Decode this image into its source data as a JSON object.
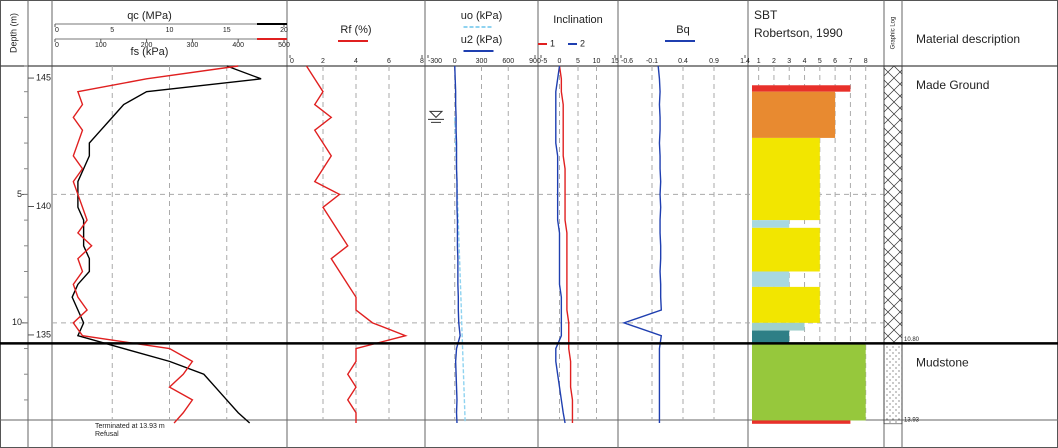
{
  "header": {
    "depth_label": "Depth (m)",
    "graphic_log": "Graphic Log",
    "material_description": "Material description"
  },
  "footer": {
    "termination": "Terminated at 13.93 m",
    "reason": "Refusal"
  },
  "chart_data": {
    "type": "cpt-log",
    "depth": [
      0,
      0.5,
      1,
      1.5,
      2,
      2.5,
      3,
      3.5,
      4,
      4.5,
      5,
      5.5,
      6,
      6.5,
      7,
      7.5,
      8,
      8.5,
      9,
      9.5,
      10,
      10.5,
      11,
      11.5,
      12,
      12.5,
      13,
      13.5,
      13.9
    ],
    "ylim": [
      0,
      14
    ],
    "yticks": [
      5,
      10
    ],
    "elevation_lim": [
      145.47,
      131.47
    ],
    "elevation_ticks": [
      145,
      140,
      135
    ],
    "grid": true,
    "panels": [
      {
        "axes": [
          {
            "xlim": [
              0,
              20
            ],
            "xticks": [
              0,
              5,
              10,
              15,
              20
            ],
            "series": [
              {
                "name": "qc (MPa)",
                "color": "#000000",
                "values": [
                  15,
                  18,
                  8,
                  6,
                  5,
                  4,
                  3,
                  3,
                  2.5,
                  2,
                  2,
                  2,
                  2.5,
                  2.5,
                  2.5,
                  3,
                  3,
                  2,
                  1.5,
                  2,
                  2.5,
                  2,
                  6,
                  10,
                  13,
                  14,
                  15,
                  16,
                  17
                ]
              }
            ]
          },
          {
            "xlim": [
              0,
              500
            ],
            "xticks": [
              0,
              100,
              200,
              300,
              400,
              500
            ],
            "series": [
              {
                "name": "fs (kPa)",
                "color": "#e02020",
                "values": [
                  400,
                  200,
                  50,
                  60,
                  40,
                  60,
                  50,
                  40,
                  60,
                  40,
                  50,
                  60,
                  70,
                  50,
                  80,
                  50,
                  60,
                  40,
                  50,
                  70,
                  40,
                  60,
                  250,
                  300,
                  280,
                  250,
                  300,
                  280,
                  260
                ]
              }
            ]
          }
        ]
      },
      {
        "axes": [
          {
            "xlim": [
              0,
              8
            ],
            "xticks": [
              0,
              2,
              4,
              6,
              8
            ],
            "series": [
              {
                "name": "Rf (%)",
                "color": "#e02020",
                "values": [
                  1,
                  1.5,
                  2,
                  1.5,
                  2.5,
                  1.5,
                  2,
                  2.5,
                  2,
                  1.5,
                  3,
                  2,
                  2.5,
                  3,
                  3.5,
                  2.5,
                  3,
                  3.5,
                  4,
                  4,
                  5,
                  7,
                  4,
                  4,
                  3.5,
                  4,
                  3.5,
                  4,
                  4
                ]
              }
            ]
          }
        ]
      },
      {
        "axes": [
          {
            "xlim": [
              -300,
              900
            ],
            "xticks": [
              -300,
              0,
              300,
              600,
              900
            ],
            "series": [
              {
                "name": "uo (kPa)",
                "color": "#8fd3f0",
                "dashed": true,
                "values": [
                  null,
                  null,
                  null,
                  null,
                  0,
                  5,
                  10,
                  15,
                  20,
                  25,
                  29,
                  34,
                  39,
                  44,
                  49,
                  54,
                  59,
                  64,
                  69,
                  74,
                  78,
                  83,
                  88,
                  93,
                  98,
                  103,
                  108,
                  113,
                  117
                ]
              },
              {
                "name": "u2 (kPa)",
                "color": "#1f3fb0",
                "values": [
                  0,
                  5,
                  10,
                  10,
                  15,
                  15,
                  20,
                  20,
                  20,
                  25,
                  25,
                  25,
                  30,
                  30,
                  30,
                  35,
                  35,
                  35,
                  40,
                  40,
                  45,
                  60,
                  20,
                  10,
                  15,
                  20,
                  25,
                  20,
                  25
                ]
              }
            ]
          }
        ]
      },
      {
        "title": "Inclination",
        "axes": [
          {
            "xlim": [
              -5,
              15
            ],
            "xticks": [
              -5,
              0,
              5,
              10,
              15
            ],
            "series": [
              {
                "name": "1",
                "color": "#e02020",
                "values": [
                  0,
                  0.5,
                  0.5,
                  1,
                  1,
                  1,
                  1,
                  1,
                  1.5,
                  1.5,
                  1.5,
                  1.5,
                  1.5,
                  2,
                  2,
                  2,
                  2,
                  2,
                  2,
                  2,
                  2.5,
                  2.5,
                  2.5,
                  3,
                  3,
                  3,
                  3.5,
                  3.5,
                  3.5
                ]
              },
              {
                "name": "2",
                "color": "#1f3fb0",
                "values": [
                  0,
                  -0.5,
                  -1,
                  -1,
                  -1,
                  -1,
                  -1,
                  -0.5,
                  -0.5,
                  -0.5,
                  -0.5,
                  -0.5,
                  -0.5,
                  0,
                  0,
                  0,
                  0,
                  0,
                  0.5,
                  0.5,
                  0.5,
                  0.5,
                  -1,
                  -1,
                  -0.5,
                  0,
                  0.5,
                  1,
                  1.5
                ]
              }
            ]
          }
        ]
      },
      {
        "axes": [
          {
            "xlim": [
              -0.6,
              1.4
            ],
            "xticks": [
              -0.6,
              -0.1,
              0.4,
              0.9,
              1.4
            ],
            "series": [
              {
                "name": "Bq",
                "color": "#1f3fb0",
                "values": [
                  0,
                  0.02,
                  0.03,
                  0.02,
                  0.03,
                  0.03,
                  0.02,
                  0.03,
                  0.03,
                  0.04,
                  0.03,
                  0.04,
                  0.03,
                  0.03,
                  0.04,
                  0.04,
                  0.03,
                  0.04,
                  0.04,
                  0.05,
                  -0.55,
                  0.05,
                  0.02,
                  0.02,
                  0.02,
                  0.02,
                  0.02,
                  0.02,
                  0.02
                ]
              }
            ]
          }
        ]
      }
    ],
    "sbt": {
      "title": "SBT",
      "subtitle": "Robertson, 1990",
      "xlim": [
        0.5,
        9
      ],
      "xticks": [
        1,
        2,
        3,
        4,
        5,
        6,
        7,
        8
      ],
      "layers": [
        {
          "top": 0.75,
          "bottom": 1.0,
          "zone": 7,
          "color": "#e8302a"
        },
        {
          "top": 1.0,
          "bottom": 2.8,
          "zone": 6,
          "color": "#e88a30"
        },
        {
          "top": 2.8,
          "bottom": 6.0,
          "zone": 5,
          "color": "#f2e600"
        },
        {
          "top": 6.0,
          "bottom": 6.3,
          "zone": 3,
          "color": "#a8d8e0"
        },
        {
          "top": 6.3,
          "bottom": 8.0,
          "zone": 5,
          "color": "#f2e600"
        },
        {
          "top": 8.0,
          "bottom": 8.6,
          "zone": 3,
          "color": "#a8d8e0"
        },
        {
          "top": 8.6,
          "bottom": 10.0,
          "zone": 5,
          "color": "#f2e600"
        },
        {
          "top": 10.0,
          "bottom": 10.3,
          "zone": 4,
          "color": "#9fd0cc"
        },
        {
          "top": 10.3,
          "bottom": 10.8,
          "zone": 3,
          "color": "#2e7f86"
        },
        {
          "top": 10.8,
          "bottom": 13.8,
          "zone": 8,
          "color": "#96c83c"
        },
        {
          "top": 13.8,
          "bottom": 13.93,
          "zone": 7,
          "color": "#e8302a"
        }
      ]
    },
    "strata": {
      "descriptions": [
        "Made Ground",
        "Mudstone"
      ],
      "boundaries": [
        {
          "value": 10.8,
          "label": "10.80"
        },
        {
          "value": 13.93,
          "label": "13.93"
        }
      ]
    }
  }
}
